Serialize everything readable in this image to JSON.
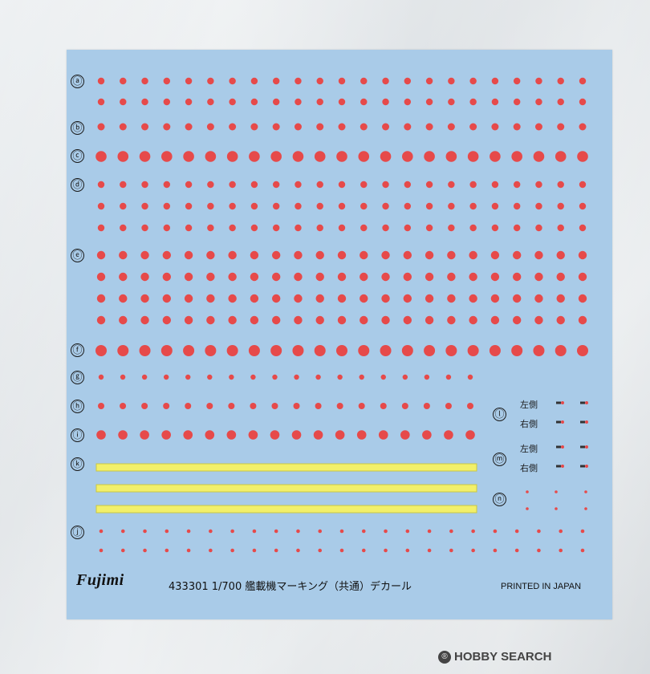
{
  "row_labels": {
    "a": "ⓐ",
    "b": "ⓑ",
    "c": "ⓒ",
    "d": "ⓓ",
    "e": "ⓔ",
    "f": "ⓕ",
    "g": "ⓖ",
    "h": "ⓗ",
    "i": "ⓘ",
    "k": "ⓚ",
    "j": "ⓙ",
    "l": "ⓛ",
    "m": "ⓜ",
    "n": "ⓝ"
  },
  "side_labels": {
    "left": "左側",
    "right": "右側"
  },
  "footer": {
    "brand": "Fujimi",
    "product": "433301 1/700 艦載機マーキング（共通）デカール",
    "printed": "PRINTED IN JAPAN"
  },
  "watermark": {
    "text": "HOBBY SEARCH",
    "icon": "®"
  },
  "colors": {
    "sheet": "#a9cbe8",
    "dot": "#e64a4a",
    "stripe_fill": "#f2f06a",
    "stripe_border": "#c9c744"
  }
}
